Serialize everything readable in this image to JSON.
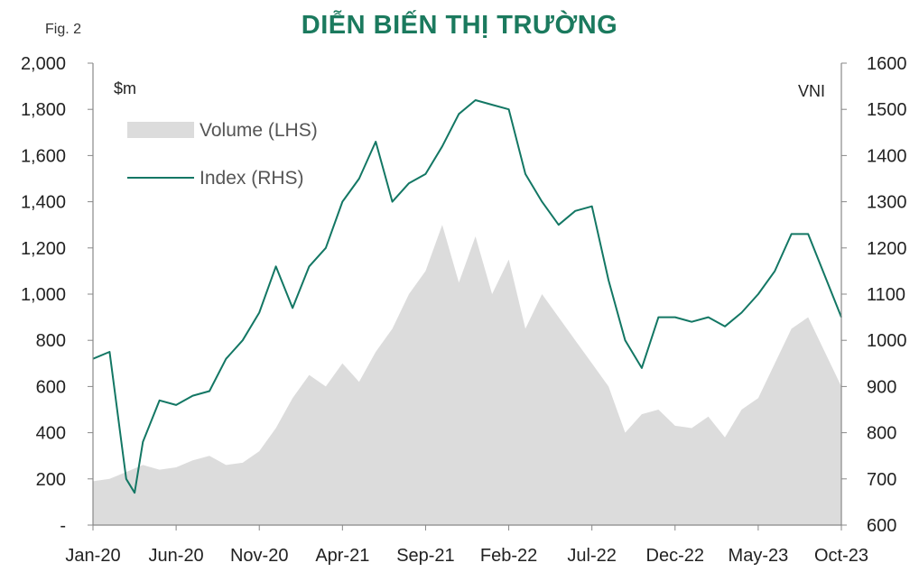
{
  "figure_label": "Fig. 2",
  "chart_data": {
    "type": "area+line",
    "title": "DIỄN BIẾN THỊ TRƯỜNG",
    "left_unit": "$m",
    "right_unit": "VNI",
    "x_ticks": [
      "Jan-20",
      "Jun-20",
      "Nov-20",
      "Apr-21",
      "Sep-21",
      "Feb-22",
      "Jul-22",
      "Dec-22",
      "May-23",
      "Oct-23"
    ],
    "y_left": {
      "range": [
        0,
        2000
      ],
      "ticks": [
        "-",
        "200",
        "400",
        "600",
        "800",
        "1,000",
        "1,200",
        "1,400",
        "1,600",
        "1,800",
        "2,000"
      ]
    },
    "y_right": {
      "range": [
        600,
        1600
      ],
      "ticks": [
        "600",
        "700",
        "800",
        "900",
        "1000",
        "1100",
        "1200",
        "1300",
        "1400",
        "1500",
        "1600"
      ]
    },
    "legend_position": "top-left",
    "colors": {
      "volume": "#dcdcdc",
      "index": "#137764",
      "title": "#1b7a5e"
    },
    "series": [
      {
        "name": "Volume (LHS)",
        "axis": "left",
        "x_month_index": [
          0,
          1,
          2,
          3,
          4,
          5,
          6,
          7,
          8,
          9,
          10,
          11,
          12,
          13,
          14,
          15,
          16,
          17,
          18,
          19,
          20,
          21,
          22,
          23,
          24,
          25,
          26,
          27,
          28,
          29,
          30,
          31,
          32,
          33,
          34,
          35,
          36,
          37,
          38,
          39,
          40,
          41,
          42,
          43,
          44,
          45
        ],
        "values": [
          190,
          200,
          230,
          260,
          240,
          250,
          280,
          300,
          260,
          270,
          320,
          420,
          550,
          650,
          600,
          700,
          620,
          750,
          850,
          1000,
          1100,
          1300,
          1050,
          1250,
          1000,
          1150,
          850,
          1000,
          900,
          800,
          700,
          600,
          400,
          480,
          500,
          430,
          420,
          470,
          380,
          500,
          550,
          700,
          850,
          900,
          750,
          600
        ]
      },
      {
        "name": "Index (RHS)",
        "axis": "right",
        "x_month_index": [
          0,
          1,
          2,
          2.5,
          3,
          4,
          5,
          6,
          7,
          8,
          9,
          10,
          11,
          12,
          13,
          14,
          15,
          16,
          17,
          18,
          19,
          20,
          21,
          22,
          23,
          24,
          25,
          26,
          27,
          28,
          29,
          30,
          31,
          32,
          33,
          34,
          35,
          36,
          37,
          38,
          39,
          40,
          41,
          42,
          43,
          44,
          45
        ],
        "values": [
          960,
          975,
          700,
          670,
          780,
          870,
          860,
          880,
          890,
          960,
          1000,
          1060,
          1160,
          1070,
          1160,
          1200,
          1300,
          1350,
          1430,
          1300,
          1340,
          1360,
          1420,
          1490,
          1520,
          1510,
          1500,
          1360,
          1300,
          1250,
          1280,
          1290,
          1130,
          1000,
          940,
          1050,
          1050,
          1040,
          1050,
          1030,
          1060,
          1100,
          1150,
          1230,
          1230,
          1140,
          1050
        ]
      }
    ]
  }
}
